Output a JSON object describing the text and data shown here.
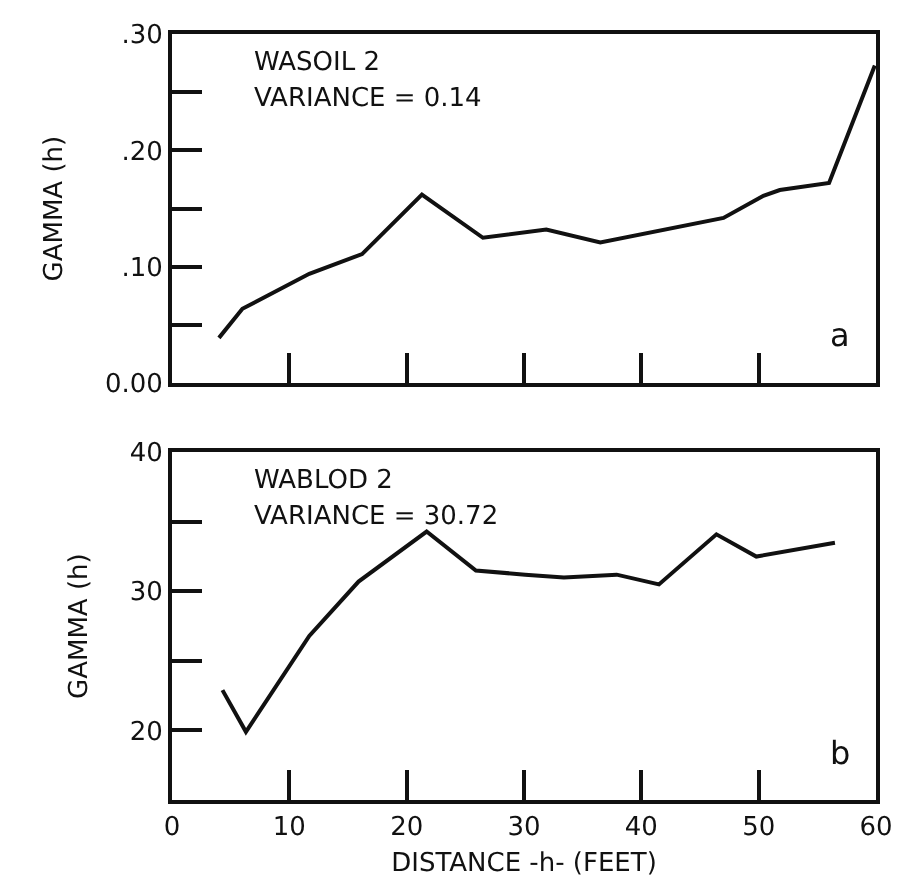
{
  "chart_data": [
    {
      "type": "line",
      "x": [
        4.0,
        6.0,
        11.7,
        16.2,
        21.3,
        26.5,
        31.9,
        36.5,
        47.0,
        50.4,
        51.8,
        56.0,
        59.9
      ],
      "values": [
        0.039,
        0.064,
        0.094,
        0.111,
        0.162,
        0.125,
        0.132,
        0.121,
        0.142,
        0.161,
        0.166,
        0.172,
        0.273
      ],
      "color": "#111111",
      "xlim": [
        0,
        60
      ],
      "xticks": [
        10,
        20,
        30,
        40,
        50
      ],
      "ylim": [
        0,
        0.3
      ],
      "yticks": [
        {
          "value": 0,
          "label": "0.00"
        },
        {
          "value": 0.05,
          "label": null
        },
        {
          "value": 0.1,
          "label": ".10"
        },
        {
          "value": 0.15,
          "label": null
        },
        {
          "value": 0.2,
          "label": ".20"
        },
        {
          "value": 0.25,
          "label": null
        },
        {
          "value": 0.3,
          "label": ".30"
        }
      ],
      "ylabel": "GAMMA (h)",
      "tick_labels": "y",
      "annotations": [
        "WASOIL 2",
        "VARIANCE = 0.14",
        "a"
      ]
    },
    {
      "type": "line",
      "x": [
        4.3,
        6.3,
        11.7,
        15.9,
        21.7,
        25.9,
        30.1,
        33.4,
        37.9,
        41.5,
        46.4,
        49.8,
        56.5
      ],
      "values": [
        22.9,
        19.9,
        26.8,
        30.7,
        34.3,
        31.5,
        31.2,
        31.0,
        31.2,
        30.5,
        34.1,
        32.5,
        33.5
      ],
      "color": "#111111",
      "xlim": [
        0,
        60
      ],
      "xticks": [
        0,
        10,
        20,
        30,
        40,
        50,
        60
      ],
      "ylim": [
        15,
        40
      ],
      "yticks": [
        20,
        {
          "value": 25,
          "label": null
        },
        30,
        {
          "value": 35,
          "label": null
        },
        40
      ],
      "xlabel": "DISTANCE -h- (FEET)",
      "ylabel": "GAMMA (h)",
      "annotations": [
        "WABLOD 2",
        "VARIANCE = 30.72",
        "b"
      ]
    }
  ]
}
